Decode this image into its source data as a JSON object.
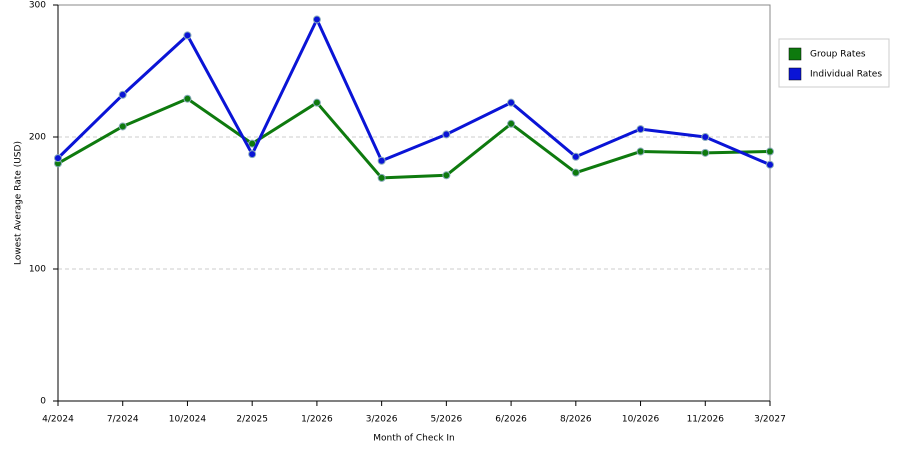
{
  "chart_data": {
    "type": "line",
    "x_label": "Month of Check In",
    "y_label": "Lowest Average Rate (USD)",
    "categories": [
      "4/2024",
      "7/2024",
      "10/2024",
      "2/2025",
      "1/2026",
      "3/2026",
      "5/2026",
      "6/2026",
      "8/2026",
      "10/2026",
      "11/2026",
      "3/2027"
    ],
    "series": [
      {
        "name": "Group Rates",
        "color": "#0e7a0e",
        "values": [
          180,
          208,
          229,
          195,
          226,
          169,
          171,
          210,
          173,
          189,
          188,
          189
        ]
      },
      {
        "name": "Individual Rates",
        "color": "#0a14d6",
        "values": [
          184,
          232,
          277,
          187,
          289,
          182,
          202,
          226,
          185,
          206,
          200,
          179
        ]
      }
    ],
    "ylim": [
      0,
      300
    ],
    "yticks": [
      0,
      100,
      200,
      300
    ],
    "grid": true,
    "legend": "right"
  }
}
